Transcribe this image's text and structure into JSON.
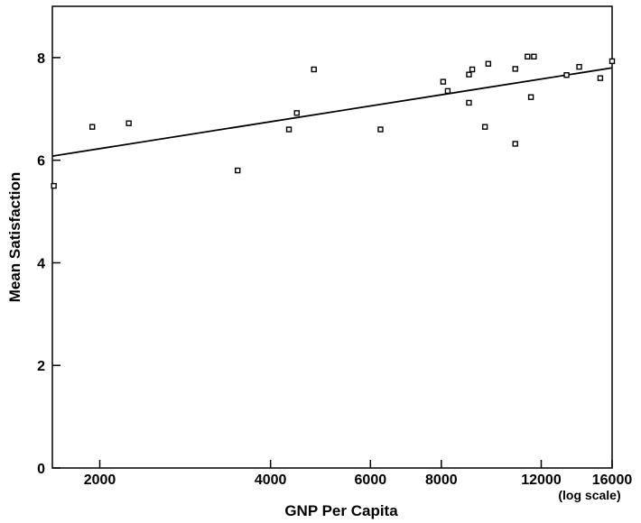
{
  "chart_data": {
    "type": "scatter",
    "xlabel": "GNP Per Capita",
    "ylabel": "Mean Satisfaction",
    "x_scale_note": "(log scale)",
    "x_scale": "log",
    "xlim": [
      1650,
      16000
    ],
    "ylim": [
      0,
      9
    ],
    "x_ticks": [
      {
        "value": 2000,
        "label": "2000"
      },
      {
        "value": 4000,
        "label": "4000"
      },
      {
        "value": 6000,
        "label": "6000"
      },
      {
        "value": 8000,
        "label": "8000"
      },
      {
        "value": 12000,
        "label": "12000"
      },
      {
        "value": 16000,
        "label": "16000"
      }
    ],
    "y_ticks": [
      {
        "value": 0,
        "label": "0"
      },
      {
        "value": 2,
        "label": "2"
      },
      {
        "value": 4,
        "label": "4"
      },
      {
        "value": 6,
        "label": "6"
      },
      {
        "value": 8,
        "label": "8"
      }
    ],
    "points": [
      {
        "x": 1660,
        "y": 5.5
      },
      {
        "x": 1940,
        "y": 6.65
      },
      {
        "x": 2250,
        "y": 6.72
      },
      {
        "x": 3500,
        "y": 5.8
      },
      {
        "x": 4310,
        "y": 6.6
      },
      {
        "x": 4450,
        "y": 6.92
      },
      {
        "x": 4770,
        "y": 7.77
      },
      {
        "x": 6250,
        "y": 6.6
      },
      {
        "x": 8060,
        "y": 7.53
      },
      {
        "x": 8210,
        "y": 7.35
      },
      {
        "x": 8950,
        "y": 7.12
      },
      {
        "x": 8950,
        "y": 7.67
      },
      {
        "x": 9070,
        "y": 7.77
      },
      {
        "x": 9550,
        "y": 6.65
      },
      {
        "x": 9680,
        "y": 7.88
      },
      {
        "x": 10800,
        "y": 7.78
      },
      {
        "x": 10800,
        "y": 6.32
      },
      {
        "x": 11350,
        "y": 8.02
      },
      {
        "x": 11650,
        "y": 8.02
      },
      {
        "x": 11510,
        "y": 7.23
      },
      {
        "x": 13300,
        "y": 7.66
      },
      {
        "x": 14000,
        "y": 7.82
      },
      {
        "x": 15250,
        "y": 7.6
      },
      {
        "x": 16000,
        "y": 7.93
      }
    ],
    "fit_line": {
      "x": [
        1650,
        16000
      ],
      "y": [
        6.08,
        7.8
      ]
    },
    "grid": false,
    "legend": "none"
  }
}
